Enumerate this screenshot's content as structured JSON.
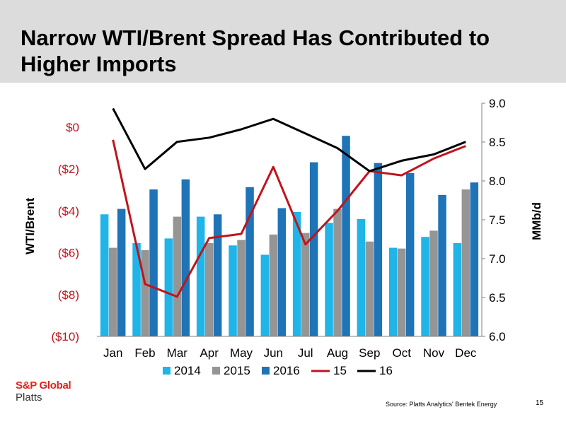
{
  "slide": {
    "title_line1": "Narrow WTI/Brent Spread Has Contributed to",
    "title_line2": "Higher Imports",
    "logo_brand": "S&P Global",
    "logo_sub": "Platts",
    "source": "Source: Platts Analytics' Bentek Energy",
    "page_number": "15"
  },
  "chart_data": {
    "type": "bar",
    "categories": [
      "Jan",
      "Feb",
      "Mar",
      "Apr",
      "May",
      "Jun",
      "Jul",
      "Aug",
      "Sep",
      "Oct",
      "Nov",
      "Dec"
    ],
    "title": "",
    "ylabel_left": "WTI/Brent",
    "ylabel_right": "MMb/d",
    "y_left": {
      "min": -10,
      "max": 0,
      "ticks": [
        0,
        -2,
        -4,
        -6,
        -8,
        -10
      ],
      "tick_labels": [
        "$0",
        "($2)",
        "($4)",
        "($6)",
        "($8)",
        "($10)"
      ]
    },
    "y_right": {
      "min": 6.0,
      "max": 9.0,
      "ticks": [
        6.0,
        6.5,
        7.0,
        7.5,
        8.0,
        8.5,
        9.0
      ],
      "tick_labels": [
        "6.0",
        "6.5",
        "7.0",
        "7.5",
        "8.0",
        "8.5",
        "9.0"
      ]
    },
    "legend_position": "bottom",
    "grid": false,
    "bar_series": [
      {
        "name": "2014",
        "color": "#1fb5e8",
        "axis": "right",
        "values": [
          7.57,
          7.2,
          7.26,
          7.54,
          7.17,
          7.05,
          7.6,
          7.46,
          7.51,
          7.14,
          7.28,
          7.2
        ]
      },
      {
        "name": "2015",
        "color": "#959595",
        "axis": "right",
        "values": [
          7.14,
          7.11,
          7.54,
          7.2,
          7.24,
          7.31,
          7.33,
          7.64,
          7.22,
          7.13,
          7.36,
          7.89
        ]
      },
      {
        "name": "2016",
        "color": "#1f73b7",
        "axis": "right",
        "values": [
          7.64,
          7.89,
          8.02,
          7.57,
          7.92,
          7.65,
          8.24,
          8.58,
          8.23,
          8.1,
          7.82,
          7.98
        ]
      }
    ],
    "line_series": [
      {
        "name": "15",
        "color": "#c0141c",
        "axis": "left",
        "values": [
          -0.6,
          -7.5,
          -8.1,
          -5.3,
          -5.1,
          -1.9,
          -5.6,
          -4.0,
          -2.1,
          -2.3,
          -1.5,
          -0.9
        ]
      },
      {
        "name": "16",
        "color": "#000000",
        "axis": "left",
        "values": [
          0.9,
          -2.0,
          -0.7,
          -0.5,
          -0.1,
          0.4,
          -0.3,
          -1.0,
          -2.1,
          -1.6,
          -1.3,
          -0.7
        ]
      }
    ]
  }
}
